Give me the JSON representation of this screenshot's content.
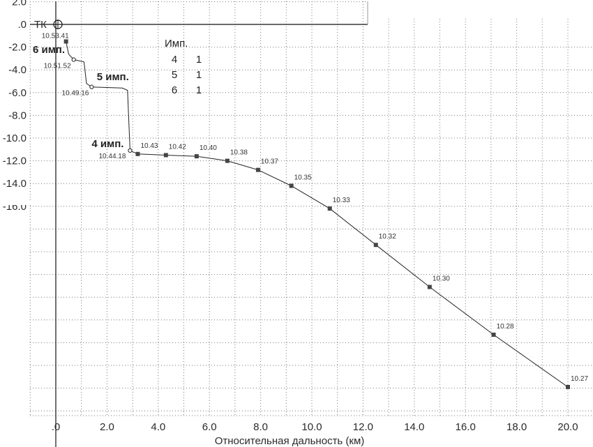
{
  "chart_data": {
    "type": "line",
    "title": "",
    "xlabel": "Относительная дальность (км)",
    "ylabel": "",
    "xlim": [
      -1.2,
      21.2
    ],
    "ylim": [
      -34.0,
      2.2
    ],
    "grid": true,
    "x_ticks": [
      ".0",
      "2.0",
      "4.0",
      "6.0",
      "8.0",
      "10.0",
      "12.0",
      "14.0",
      "16.0",
      "18.0",
      "20.0"
    ],
    "x_tick_values": [
      0,
      2,
      4,
      6,
      8,
      10,
      12,
      14,
      16,
      18,
      20
    ],
    "y_ticks": [
      "2.0",
      ".0",
      "-2.0",
      "-4.0",
      "-6.0",
      "-8.0",
      "-10.0",
      "-12.0",
      "-14.0",
      "-16.0"
    ],
    "y_tick_values": [
      2,
      0,
      -2,
      -4,
      -6,
      -8,
      -10,
      -12,
      -14,
      -16
    ],
    "origin_label": "ТК",
    "series": [
      {
        "points": [
          {
            "x": 0.4,
            "y": -1.5,
            "label": "10.53.41",
            "marker": "square"
          },
          {
            "x": 0.5,
            "y": -2.6
          },
          {
            "x": 0.7,
            "y": -3.1,
            "label": "10.51.52",
            "marker": "circle"
          },
          {
            "x": 1.1,
            "y": -3.3
          },
          {
            "x": 1.2,
            "y": -5.2
          },
          {
            "x": 1.4,
            "y": -5.5,
            "label": "10.49.16",
            "marker": "circle"
          },
          {
            "x": 2.6,
            "y": -5.6
          },
          {
            "x": 2.8,
            "y": -5.8
          },
          {
            "x": 2.9,
            "y": -11.1,
            "label": "10.44.18",
            "marker": "circle"
          },
          {
            "x": 3.2,
            "y": -11.4,
            "label": "10.43",
            "marker": "square"
          },
          {
            "x": 4.3,
            "y": -11.5,
            "label": "10.42",
            "marker": "square"
          },
          {
            "x": 5.5,
            "y": -11.6,
            "label": "10.40",
            "marker": "square"
          },
          {
            "x": 6.7,
            "y": -12.0,
            "label": "10.38",
            "marker": "square"
          },
          {
            "x": 7.9,
            "y": -12.8,
            "label": "10.37",
            "marker": "square"
          },
          {
            "x": 9.2,
            "y": -14.2,
            "label": "10.35",
            "marker": "square"
          },
          {
            "x": 10.7,
            "y": -16.2,
            "label": "10.33",
            "marker": "square"
          },
          {
            "x": 12.5,
            "y": -19.4,
            "label": "10.32",
            "marker": "square"
          },
          {
            "x": 14.6,
            "y": -23.1,
            "label": "10.30",
            "marker": "square"
          },
          {
            "x": 17.1,
            "y": -27.3,
            "label": "10.28",
            "marker": "square"
          },
          {
            "x": 20.0,
            "y": -31.9,
            "label": "10.27",
            "marker": "square"
          }
        ]
      }
    ],
    "annotations": [
      {
        "text": "6 имп.",
        "x": -0.9,
        "y": -2.5
      },
      {
        "text": "5 имп.",
        "x": 1.6,
        "y": -4.9
      },
      {
        "text": "4 имп.",
        "x": 1.4,
        "y": -10.8
      }
    ],
    "legend": {
      "title": "Имп.",
      "rows": [
        {
          "imp": "4",
          "value": "1"
        },
        {
          "imp": "5",
          "value": "1"
        },
        {
          "imp": "6",
          "value": "1"
        }
      ]
    }
  }
}
